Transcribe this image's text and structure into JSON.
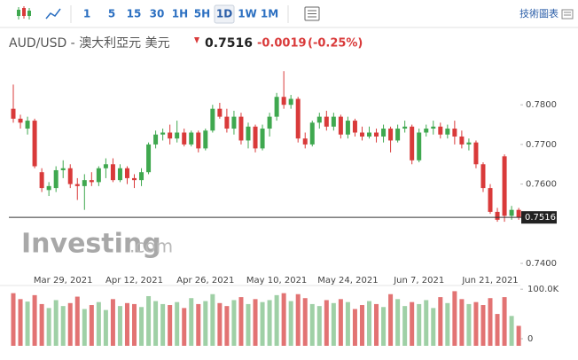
{
  "toolbar": {
    "intervals": [
      "1",
      "5",
      "15",
      "30",
      "1H",
      "5H",
      "1D",
      "1W",
      "1M"
    ],
    "selected_index": 6,
    "chart_menu": "技術圖表"
  },
  "chart_data": {
    "type": "candlestick",
    "title": "AUD/USD - 澳大利亞元 美元",
    "last_price": 0.7516,
    "change": -0.0019,
    "change_percent": "(-0.25%)",
    "watermark": [
      "Investing",
      ".com"
    ],
    "up_color": "#3fa84f",
    "down_color": "#d93a3a",
    "volume_up_color": "#9fd0a6",
    "volume_down_color": "#e27373",
    "categories": [
      null,
      null,
      null,
      null,
      null,
      null,
      null,
      "Mar 29, 2021",
      null,
      null,
      null,
      null,
      null,
      null,
      null,
      null,
      null,
      "Apr 12, 2021",
      null,
      null,
      null,
      null,
      null,
      null,
      null,
      null,
      null,
      "Apr 26, 2021",
      null,
      null,
      null,
      null,
      null,
      null,
      null,
      null,
      null,
      "May 10, 2021",
      null,
      null,
      null,
      null,
      null,
      null,
      null,
      null,
      null,
      "May 24, 2021",
      null,
      null,
      null,
      null,
      null,
      null,
      null,
      null,
      null,
      "Jun 7, 2021",
      null,
      null,
      null,
      null,
      null,
      null,
      null,
      null,
      null,
      "Jun 21, 2021",
      null,
      null,
      null,
      null
    ],
    "open": [
      0.779,
      0.7765,
      0.774,
      0.776,
      0.763,
      0.7585,
      0.759,
      0.7635,
      0.764,
      0.76,
      0.7595,
      0.761,
      0.7605,
      0.764,
      0.765,
      0.761,
      0.764,
      0.7615,
      0.761,
      0.763,
      0.77,
      0.7725,
      0.773,
      0.7715,
      0.773,
      0.77,
      0.773,
      0.769,
      0.7735,
      0.779,
      0.777,
      0.774,
      0.777,
      0.771,
      0.7745,
      0.769,
      0.774,
      0.777,
      0.782,
      0.78,
      0.7815,
      0.7715,
      0.77,
      0.7755,
      0.777,
      0.7745,
      0.777,
      0.7725,
      0.776,
      0.773,
      0.772,
      0.773,
      0.772,
      0.774,
      0.771,
      0.774,
      0.7745,
      0.766,
      0.773,
      0.774,
      0.7745,
      0.7725,
      0.774,
      0.772,
      0.77,
      0.7705,
      0.765,
      0.759,
      0.753,
      0.767,
      0.752,
      0.7535
    ],
    "high": [
      0.7851,
      0.7775,
      0.777,
      0.7765,
      0.764,
      0.7605,
      0.7645,
      0.766,
      0.765,
      0.7615,
      0.7625,
      0.763,
      0.7645,
      0.7665,
      0.7665,
      0.765,
      0.7645,
      0.7625,
      0.764,
      0.7705,
      0.7735,
      0.774,
      0.775,
      0.776,
      0.774,
      0.7735,
      0.7735,
      0.774,
      0.78,
      0.7805,
      0.779,
      0.7785,
      0.778,
      0.7755,
      0.775,
      0.775,
      0.778,
      0.783,
      0.7885,
      0.7825,
      0.782,
      0.773,
      0.776,
      0.778,
      0.7785,
      0.778,
      0.7775,
      0.777,
      0.7765,
      0.7745,
      0.7745,
      0.774,
      0.775,
      0.7745,
      0.775,
      0.776,
      0.775,
      0.774,
      0.775,
      0.776,
      0.7755,
      0.775,
      0.776,
      0.7735,
      0.7715,
      0.771,
      0.7655,
      0.76,
      0.754,
      0.7675,
      0.7545,
      0.754
    ],
    "low": [
      0.7755,
      0.774,
      0.7725,
      0.764,
      0.758,
      0.757,
      0.758,
      0.7615,
      0.759,
      0.756,
      0.7535,
      0.7595,
      0.7595,
      0.7615,
      0.7605,
      0.7605,
      0.76,
      0.759,
      0.7595,
      0.7625,
      0.769,
      0.771,
      0.77,
      0.7705,
      0.7695,
      0.7695,
      0.768,
      0.7685,
      0.773,
      0.7765,
      0.773,
      0.7725,
      0.77,
      0.769,
      0.768,
      0.7685,
      0.772,
      0.776,
      0.779,
      0.779,
      0.7705,
      0.769,
      0.7695,
      0.774,
      0.7735,
      0.7735,
      0.7715,
      0.7715,
      0.772,
      0.771,
      0.7715,
      0.7705,
      0.7705,
      0.768,
      0.7705,
      0.773,
      0.765,
      0.7655,
      0.772,
      0.7725,
      0.7715,
      0.7715,
      0.77,
      0.769,
      0.7685,
      0.764,
      0.758,
      0.7525,
      0.7505,
      0.7505,
      0.751,
      0.751
    ],
    "close": [
      0.7765,
      0.7755,
      0.776,
      0.7645,
      0.759,
      0.7595,
      0.7635,
      0.764,
      0.76,
      0.7595,
      0.761,
      0.7605,
      0.764,
      0.765,
      0.761,
      0.764,
      0.7615,
      0.761,
      0.763,
      0.77,
      0.7725,
      0.773,
      0.7715,
      0.773,
      0.77,
      0.773,
      0.769,
      0.7735,
      0.779,
      0.777,
      0.774,
      0.777,
      0.771,
      0.7745,
      0.769,
      0.774,
      0.777,
      0.782,
      0.78,
      0.7815,
      0.7715,
      0.77,
      0.7755,
      0.777,
      0.7745,
      0.777,
      0.7725,
      0.776,
      0.773,
      0.772,
      0.773,
      0.772,
      0.774,
      0.771,
      0.774,
      0.7745,
      0.766,
      0.773,
      0.774,
      0.7745,
      0.7725,
      0.774,
      0.772,
      0.77,
      0.7705,
      0.765,
      0.759,
      0.753,
      0.751,
      0.752,
      0.7535,
      0.7516
    ],
    "ylim": [
      0.7371,
      0.7919
    ],
    "yticks": [
      {
        "value": 0.74,
        "label": "0.7400"
      },
      {
        "value": 0.76,
        "label": "0.7600"
      },
      {
        "value": 0.77,
        "label": "0.7700"
      },
      {
        "value": 0.78,
        "label": "0.7800"
      }
    ],
    "volume": {
      "values": [
        92000,
        80000,
        75000,
        88000,
        70000,
        62000,
        78000,
        66000,
        72000,
        85000,
        60000,
        68000,
        74000,
        58000,
        80000,
        66000,
        72000,
        70000,
        64000,
        86000,
        76000,
        70000,
        68000,
        74000,
        62000,
        82000,
        70000,
        76000,
        90000,
        72000,
        66000,
        78000,
        84000,
        70000,
        80000,
        74000,
        78000,
        88000,
        92000,
        76000,
        90000,
        82000,
        70000,
        66000,
        78000,
        72000,
        80000,
        74000,
        60000,
        68000,
        76000,
        70000,
        64000,
        90000,
        80000,
        66000,
        74000,
        70000,
        78000,
        62000,
        84000,
        72000,
        96000,
        80000,
        70000,
        74000,
        68000,
        82000,
        50000,
        84000,
        46000,
        26000
      ],
      "ylim": [
        0,
        120000
      ],
      "yticks": [
        0,
        {
          "value": 100000,
          "label": "100.0K"
        }
      ]
    }
  }
}
